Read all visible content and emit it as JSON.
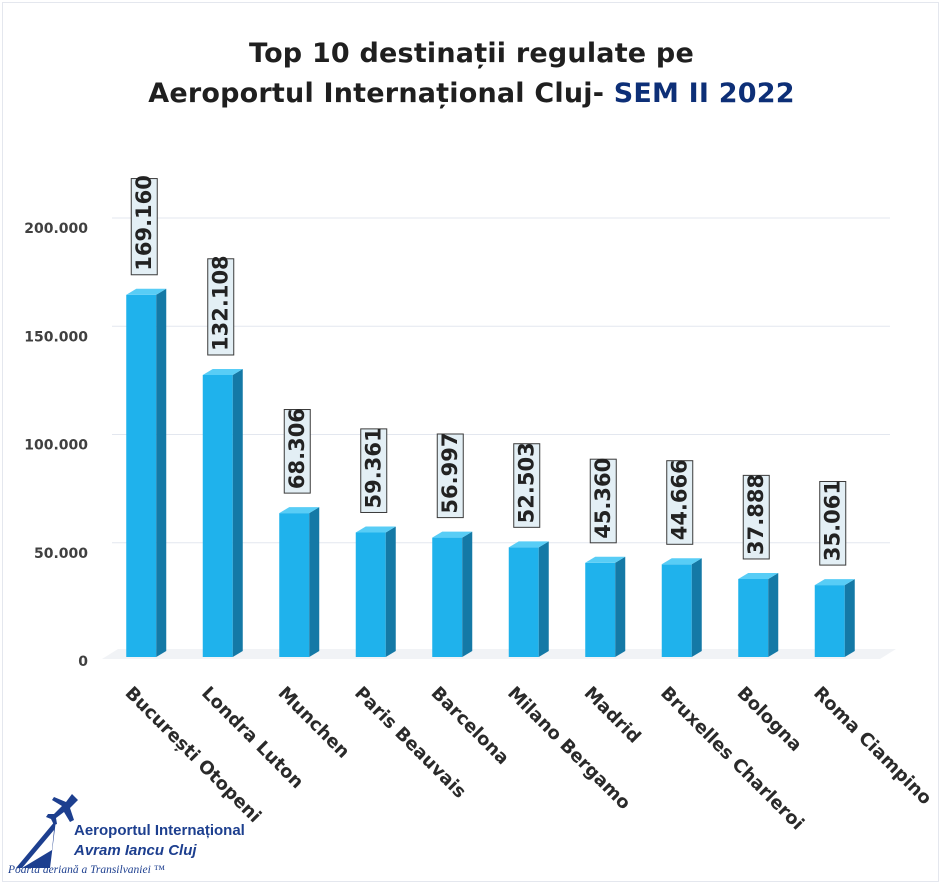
{
  "title": {
    "line1": "Top 10 destinații regulate pe",
    "line2_prefix": "Aeroportul Internațional Cluj- ",
    "line2_highlight": "SEM II 2022"
  },
  "chart_data": {
    "type": "bar",
    "categories": [
      "București Otopeni",
      "Londra Luton",
      "Munchen",
      "Paris Beauvais",
      "Barcelona",
      "Milano Bergamo",
      "Madrid",
      "Bruxelles Charleroi",
      "Bologna",
      "Roma Ciampino"
    ],
    "values": [
      169160,
      132108,
      68306,
      59361,
      56997,
      52503,
      45360,
      44666,
      37888,
      35061
    ],
    "data_labels": [
      "169.160",
      "132.108",
      "68.306",
      "59.361",
      "56.997",
      "52.503",
      "45.360",
      "44.666",
      "37.888",
      "35.061"
    ],
    "yticks": [
      0,
      50000,
      100000,
      150000,
      200000
    ],
    "ytick_labels": [
      "0",
      "50.000",
      "100.000",
      "150.000",
      "200.000"
    ],
    "ylim": [
      0,
      200000
    ],
    "grid": true,
    "bar_color": "#1fb2ec",
    "bar_side_color": "#1479a6",
    "bar_top_color": "#58cdf6"
  },
  "logo": {
    "name_line1": "Aeroportul Internațional",
    "name_line2": "Avram Iancu Cluj",
    "tagline": "Poarta aeriană a Transilvaniei ™",
    "icon": "airplane-icon",
    "brand_color": "#1d3f8f"
  }
}
